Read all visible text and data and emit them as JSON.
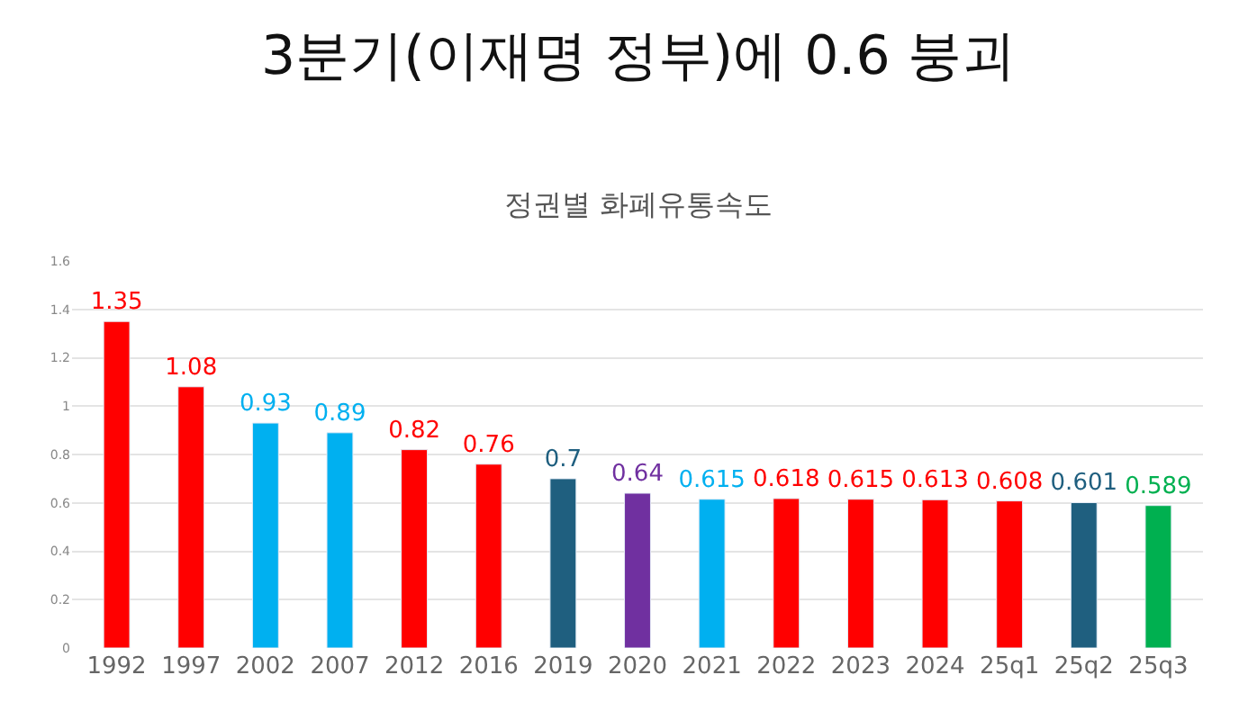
{
  "chart_data": {
    "type": "bar",
    "title": "3분기(이재명 정부)에 0.6 붕괴",
    "subtitle": "정권별 화폐유통속도",
    "categories": [
      "1992",
      "1997",
      "2002",
      "2007",
      "2012",
      "2016",
      "2019",
      "2020",
      "2021",
      "2022",
      "2023",
      "2024",
      "25q1",
      "25q2",
      "25q3"
    ],
    "values": [
      1.35,
      1.08,
      0.93,
      0.89,
      0.82,
      0.76,
      0.7,
      0.64,
      0.615,
      0.618,
      0.615,
      0.613,
      0.608,
      0.601,
      0.589
    ],
    "colors": [
      "#ff0000",
      "#ff0000",
      "#00b0f0",
      "#00b0f0",
      "#ff0000",
      "#ff0000",
      "#1f5f7f",
      "#7030a0",
      "#00b0f0",
      "#ff0000",
      "#ff0000",
      "#ff0000",
      "#ff0000",
      "#1f5f7f",
      "#00b050"
    ],
    "ylim": [
      0,
      1.6
    ],
    "yticks": [
      0,
      0.2,
      0.4,
      0.6,
      0.8,
      1,
      1.2,
      1.4,
      1.6
    ],
    "grid": "y",
    "data_labels": true
  }
}
